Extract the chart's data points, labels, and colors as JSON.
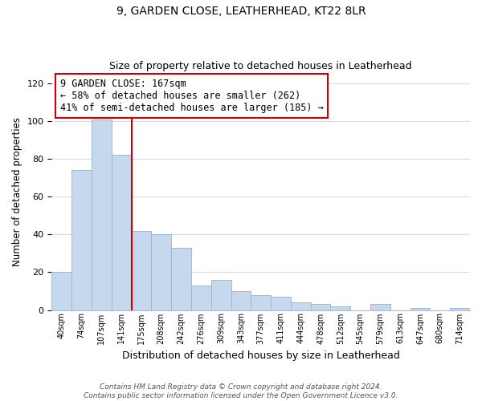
{
  "title1": "9, GARDEN CLOSE, LEATHERHEAD, KT22 8LR",
  "title2": "Size of property relative to detached houses in Leatherhead",
  "xlabel": "Distribution of detached houses by size in Leatherhead",
  "ylabel": "Number of detached properties",
  "bar_labels": [
    "40sqm",
    "74sqm",
    "107sqm",
    "141sqm",
    "175sqm",
    "208sqm",
    "242sqm",
    "276sqm",
    "309sqm",
    "343sqm",
    "377sqm",
    "411sqm",
    "444sqm",
    "478sqm",
    "512sqm",
    "545sqm",
    "579sqm",
    "613sqm",
    "647sqm",
    "680sqm",
    "714sqm"
  ],
  "bar_values": [
    20,
    74,
    101,
    82,
    42,
    40,
    33,
    13,
    16,
    10,
    8,
    7,
    4,
    3,
    2,
    0,
    3,
    0,
    1,
    0,
    1
  ],
  "bar_color": "#c5d8ed",
  "bar_edge_color": "#a0b8d0",
  "vline_color": "#cc0000",
  "annotation_text": "9 GARDEN CLOSE: 167sqm\n← 58% of detached houses are smaller (262)\n41% of semi-detached houses are larger (185) →",
  "annotation_box_edgecolor": "#cc0000",
  "annotation_fontsize": 8.5,
  "ylim": [
    0,
    125
  ],
  "yticks": [
    0,
    20,
    40,
    60,
    80,
    100,
    120
  ],
  "footnote": "Contains HM Land Registry data © Crown copyright and database right 2024.\nContains public sector information licensed under the Open Government Licence v3.0.",
  "bg_color": "#ffffff",
  "grid_color": "#d0dce8"
}
